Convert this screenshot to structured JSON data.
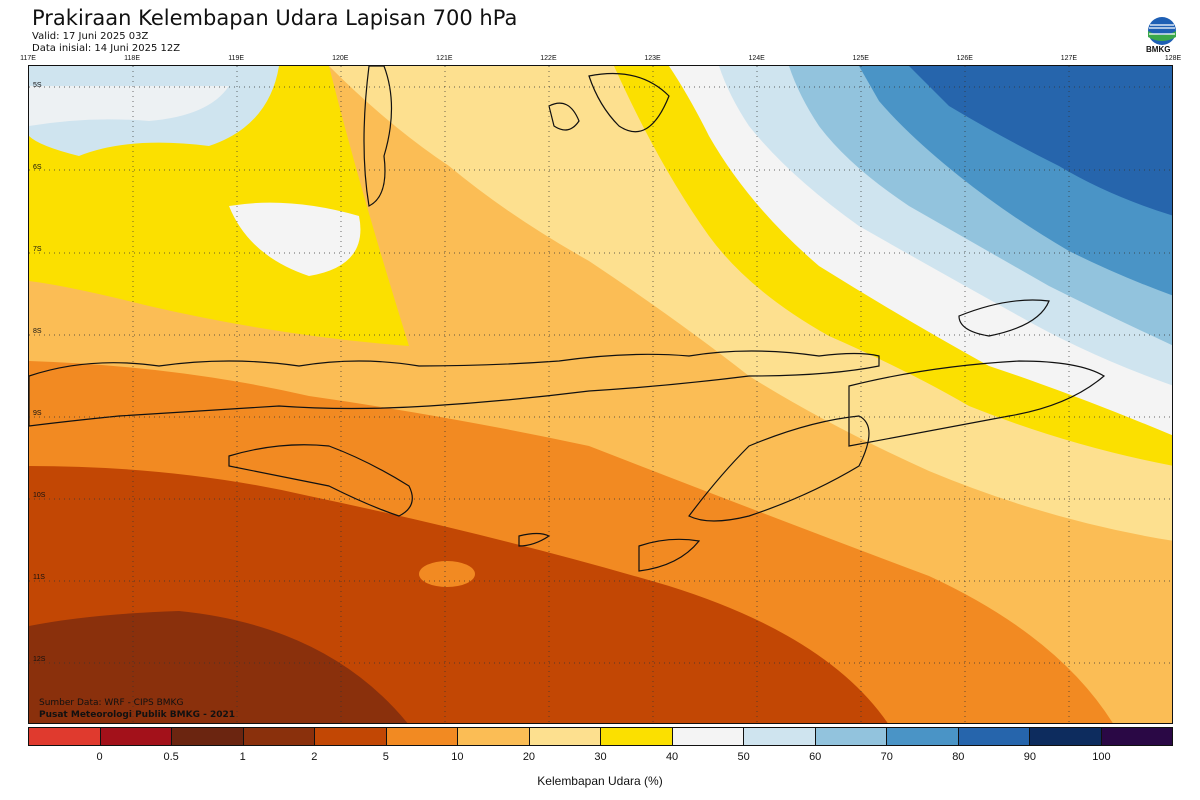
{
  "header": {
    "title": "Prakiraan Kelembapan Udara Lapisan 700 hPa",
    "valid": "Valid: 17 Juni 2025 03Z",
    "init": "Data inisial: 14 Juni 2025 12Z",
    "logo_text": "BMKG"
  },
  "axes": {
    "longitudes": [
      "117E",
      "118E",
      "119E",
      "120E",
      "121E",
      "122E",
      "123E",
      "124E",
      "125E",
      "126E",
      "127E",
      "128E"
    ],
    "latitudes": [
      "5S",
      "6S",
      "7S",
      "8S",
      "9S",
      "10S",
      "11S",
      "12S"
    ]
  },
  "footer": {
    "source": "Sumber Data: WRF - CIPS BMKG",
    "center": "Pusat Meteorologi Publik BMKG - 2021"
  },
  "colorbar": {
    "colors": [
      "#e03a2e",
      "#a3111a",
      "#6b2510",
      "#8a300c",
      "#c24704",
      "#f28a22",
      "#fbbd55",
      "#fde08f",
      "#fbe000",
      "#f4f4f4",
      "#cfe4ef",
      "#92c3dd",
      "#4a94c6",
      "#2665ac",
      "#0d2c5e",
      "#2a0845"
    ],
    "ticks": [
      "0",
      "0.5",
      "1",
      "2",
      "5",
      "10",
      "20",
      "30",
      "40",
      "50",
      "60",
      "70",
      "80",
      "90",
      "100"
    ],
    "label": "Kelembapan Udara (%)"
  }
}
